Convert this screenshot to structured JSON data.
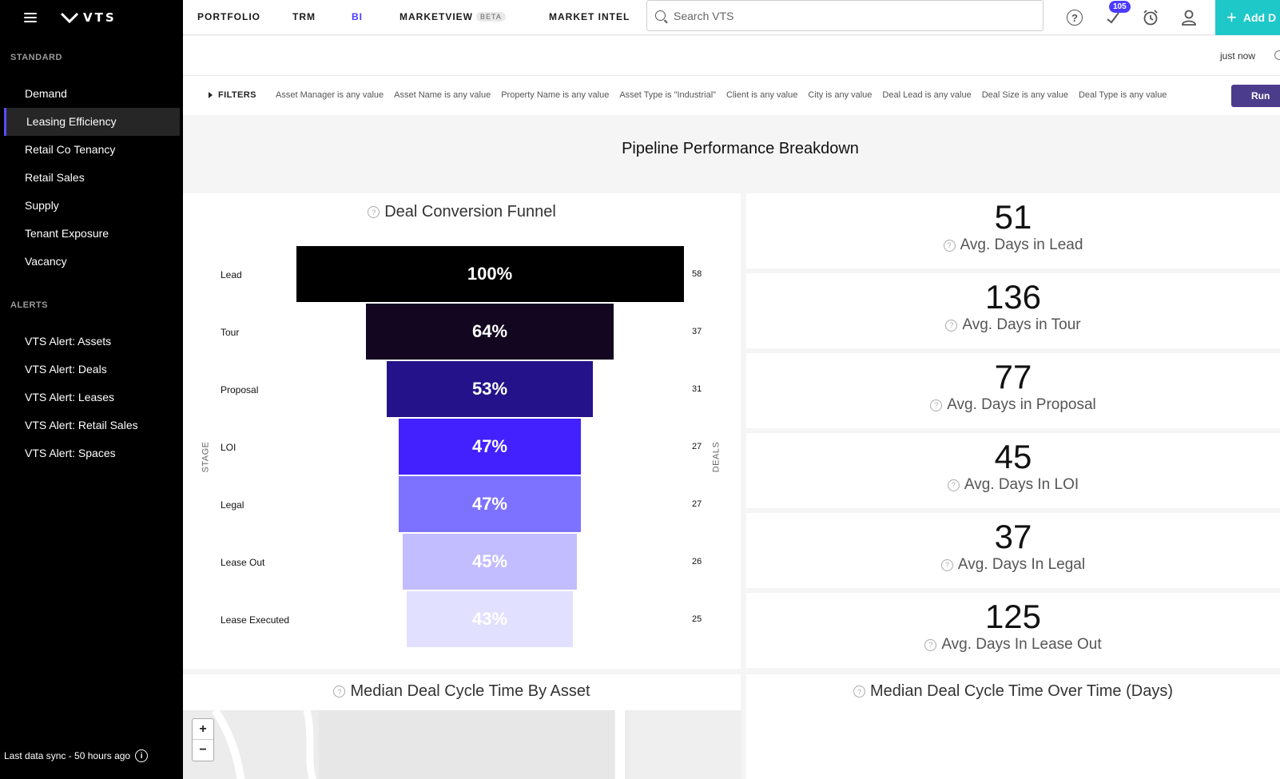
{
  "app": {
    "logo_text": "VTS"
  },
  "sidebar": {
    "sections": [
      {
        "title": "STANDARD",
        "items": [
          "Demand",
          "Leasing Efficiency",
          "Retail Co Tenancy",
          "Retail Sales",
          "Supply",
          "Tenant Exposure",
          "Vacancy"
        ]
      },
      {
        "title": "ALERTS",
        "items": [
          "VTS Alert: Assets",
          "VTS Alert: Deals",
          "VTS Alert: Leases",
          "VTS Alert: Retail Sales",
          "VTS Alert: Spaces"
        ]
      }
    ],
    "active_item": "Leasing Efficiency",
    "footer": "Last data sync - 50 hours ago"
  },
  "topnav": {
    "items": [
      "PORTFOLIO",
      "TRM",
      "BI",
      "MARKETVIEW",
      "MARKET INTEL"
    ],
    "active": "BI",
    "beta_label": "BETA",
    "search_placeholder": "Search VTS",
    "notification_count": "105",
    "add_button_label": "Add D"
  },
  "refresh": {
    "status": "just now"
  },
  "filters": {
    "toggle_label": "FILTERS",
    "chips": [
      "Asset Manager is any value",
      "Asset Name is any value",
      "Property Name is any value",
      "Asset Type is \"Industrial\"",
      "Client is any value",
      "City is any value",
      "Deal Lead is any value",
      "Deal Size is any value",
      "Deal Type is any value"
    ],
    "run_label": "Run"
  },
  "dashboard": {
    "title": "Pipeline Performance Breakdown",
    "funnel": {
      "title": "Deal Conversion Funnel",
      "y_axis_label": "STAGE",
      "right_axis_label": "DEALS",
      "stages": [
        {
          "stage": "Lead",
          "percent": "100%",
          "deals": "58",
          "color": "#000000",
          "text_color": "#ffffff"
        },
        {
          "stage": "Tour",
          "percent": "64%",
          "deals": "37",
          "color": "#120620",
          "text_color": "#ffffff"
        },
        {
          "stage": "Proposal",
          "percent": "53%",
          "deals": "31",
          "color": "#24128a",
          "text_color": "#ffffff"
        },
        {
          "stage": "LOI",
          "percent": "47%",
          "deals": "27",
          "color": "#4321ff",
          "text_color": "#ffffff"
        },
        {
          "stage": "Legal",
          "percent": "47%",
          "deals": "27",
          "color": "#7d72ff",
          "text_color": "#ffffff"
        },
        {
          "stage": "Lease Out",
          "percent": "45%",
          "deals": "26",
          "color": "#c2bdff",
          "text_color": "#ffffff"
        },
        {
          "stage": "Lease Executed",
          "percent": "43%",
          "deals": "25",
          "color": "#e2e0ff",
          "text_color": "#ffffff"
        }
      ]
    },
    "kpis": [
      {
        "value": "51",
        "label": "Avg. Days in Lead"
      },
      {
        "value": "136",
        "label": "Avg. Days in Tour"
      },
      {
        "value": "77",
        "label": "Avg. Days in Proposal"
      },
      {
        "value": "45",
        "label": "Avg. Days In LOI"
      },
      {
        "value": "37",
        "label": "Avg. Days In Legal"
      },
      {
        "value": "125",
        "label": "Avg. Days In Lease Out"
      }
    ],
    "map_panel": {
      "title": "Median Deal Cycle Time By Asset",
      "zoom_in": "+",
      "zoom_out": "−"
    },
    "time_panel": {
      "title": "Median Deal Cycle Time Over Time (Days)"
    }
  }
}
